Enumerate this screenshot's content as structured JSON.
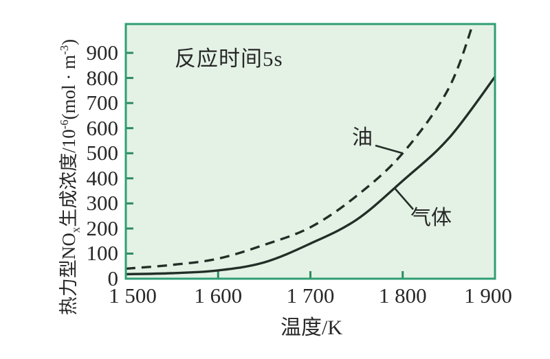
{
  "chart_data": {
    "type": "line",
    "title": "",
    "annotation": "反应时间5s",
    "xlabel": "温度/K",
    "ylabel": "热力型NOx生成浓度/10-6(mol·m-3)",
    "ylabel_parts": [
      {
        "t": "热力型NO"
      },
      {
        "t": "x",
        "style": "sub"
      },
      {
        "t": "生成浓度/10"
      },
      {
        "t": "-6",
        "style": "sup"
      },
      {
        "t": "(mol · m"
      },
      {
        "t": "-3",
        "style": "sup"
      },
      {
        "t": ")"
      }
    ],
    "xlim": [
      1500,
      1900
    ],
    "ylim": [
      0,
      1015
    ],
    "grid": false,
    "legend_position": "inline-annotations",
    "x_ticks": {
      "values": [
        1500,
        1600,
        1700,
        1800,
        1900
      ],
      "labels": [
        "1 500",
        "1 600",
        "1 700",
        "1 800",
        "1 900"
      ]
    },
    "y_ticks": {
      "values": [
        0,
        100,
        200,
        300,
        400,
        500,
        600,
        700,
        800,
        900
      ],
      "labels": [
        "0",
        "100",
        "200",
        "300",
        "400",
        "500",
        "600",
        "700",
        "800",
        "900"
      ]
    },
    "series": [
      {
        "name": "油",
        "style": "dashed",
        "x": [
          1500,
          1550,
          1600,
          1650,
          1700,
          1750,
          1800,
          1850,
          1880
        ],
        "y": [
          40,
          55,
          80,
          135,
          205,
          330,
          500,
          760,
          1060
        ]
      },
      {
        "name": "气体",
        "style": "solid",
        "x": [
          1500,
          1550,
          1600,
          1650,
          1700,
          1750,
          1800,
          1850,
          1900
        ],
        "y": [
          18,
          22,
          33,
          65,
          140,
          235,
          390,
          560,
          805
        ]
      }
    ]
  },
  "colors": {
    "plot_bg": "#e4f2e5",
    "plot_border": "#2f9e74",
    "tick": "#2c8a61",
    "curve": "#222e27",
    "text": "#272727"
  }
}
